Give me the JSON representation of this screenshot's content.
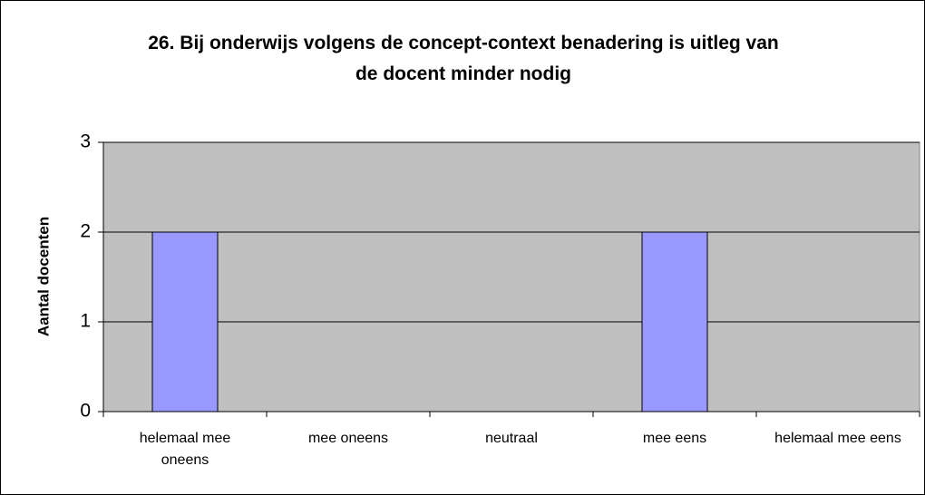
{
  "chart_data": {
    "type": "bar",
    "title": "26. Bij onderwijs volgens de concept-context benadering is uitleg van de docent minder nodig",
    "y_label": "Aantal docenten",
    "categories": [
      "helemaal mee oneens",
      "mee oneens",
      "neutraal",
      "mee eens",
      "helemaal mee eens"
    ],
    "values": [
      2,
      0,
      0,
      2,
      0
    ],
    "color": "#9999ff",
    "ylim": [
      0,
      3
    ],
    "yticks": [
      0,
      1,
      2,
      3
    ],
    "grid": true
  }
}
